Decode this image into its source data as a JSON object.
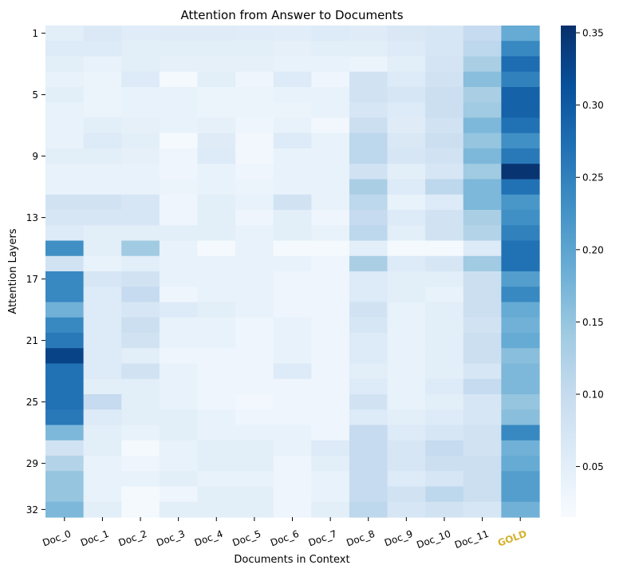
{
  "chart_data": {
    "type": "heatmap",
    "title": "Attention from Answer to Documents",
    "xlabel": "Documents in Context",
    "ylabel": "Attention Layers",
    "columns": [
      "Doc_0",
      "Doc_1",
      "Doc_2",
      "Doc_3",
      "Doc_4",
      "Doc_5",
      "Doc_6",
      "Doc_7",
      "Doc_8",
      "Doc_9",
      "Doc_10",
      "Doc_11",
      "GOLD"
    ],
    "highlight_column": "GOLD",
    "highlight_color": "#d4b22f",
    "y_tick_labels": [
      "1",
      "5",
      "9",
      "13",
      "17",
      "21",
      "25",
      "29",
      "32"
    ],
    "y_tick_rows": [
      1,
      5,
      9,
      13,
      17,
      21,
      25,
      29,
      32
    ],
    "rows": 32,
    "colorbar": {
      "min": 0.015,
      "max": 0.355,
      "ticks": [
        0.05,
        0.1,
        0.15,
        0.2,
        0.25,
        0.3,
        0.35
      ],
      "tick_labels": [
        "0.05",
        "0.10",
        "0.15",
        "0.20",
        "0.25",
        "0.30",
        "0.35"
      ]
    },
    "colormap": "Blues",
    "values": [
      [
        0.05,
        0.062,
        0.054,
        0.055,
        0.055,
        0.054,
        0.053,
        0.06,
        0.056,
        0.065,
        0.07,
        0.1,
        0.19
      ],
      [
        0.06,
        0.06,
        0.05,
        0.05,
        0.05,
        0.05,
        0.045,
        0.05,
        0.05,
        0.06,
        0.07,
        0.11,
        0.24
      ],
      [
        0.05,
        0.04,
        0.05,
        0.045,
        0.045,
        0.045,
        0.04,
        0.04,
        0.035,
        0.05,
        0.075,
        0.13,
        0.275
      ],
      [
        0.04,
        0.035,
        0.06,
        0.02,
        0.05,
        0.03,
        0.06,
        0.03,
        0.08,
        0.06,
        0.08,
        0.16,
        0.25
      ],
      [
        0.05,
        0.035,
        0.04,
        0.04,
        0.035,
        0.035,
        0.04,
        0.04,
        0.08,
        0.07,
        0.09,
        0.13,
        0.29
      ],
      [
        0.04,
        0.035,
        0.04,
        0.04,
        0.035,
        0.035,
        0.035,
        0.04,
        0.07,
        0.06,
        0.09,
        0.14,
        0.29
      ],
      [
        0.04,
        0.05,
        0.045,
        0.04,
        0.045,
        0.03,
        0.04,
        0.025,
        0.09,
        0.055,
        0.08,
        0.17,
        0.27
      ],
      [
        0.04,
        0.06,
        0.05,
        0.02,
        0.055,
        0.025,
        0.06,
        0.04,
        0.11,
        0.065,
        0.09,
        0.15,
        0.23
      ],
      [
        0.05,
        0.05,
        0.045,
        0.03,
        0.06,
        0.025,
        0.04,
        0.04,
        0.11,
        0.07,
        0.08,
        0.17,
        0.26
      ],
      [
        0.04,
        0.04,
        0.04,
        0.03,
        0.04,
        0.03,
        0.04,
        0.04,
        0.08,
        0.05,
        0.07,
        0.14,
        0.35
      ],
      [
        0.04,
        0.04,
        0.04,
        0.035,
        0.04,
        0.035,
        0.04,
        0.04,
        0.13,
        0.06,
        0.11,
        0.17,
        0.27
      ],
      [
        0.08,
        0.08,
        0.07,
        0.03,
        0.05,
        0.04,
        0.08,
        0.04,
        0.11,
        0.04,
        0.06,
        0.17,
        0.22
      ],
      [
        0.07,
        0.07,
        0.07,
        0.03,
        0.05,
        0.03,
        0.05,
        0.03,
        0.1,
        0.06,
        0.08,
        0.13,
        0.23
      ],
      [
        0.06,
        0.05,
        0.05,
        0.05,
        0.05,
        0.04,
        0.05,
        0.04,
        0.11,
        0.05,
        0.08,
        0.12,
        0.25
      ],
      [
        0.23,
        0.05,
        0.14,
        0.04,
        0.02,
        0.04,
        0.02,
        0.02,
        0.05,
        0.02,
        0.02,
        0.06,
        0.27
      ],
      [
        0.08,
        0.04,
        0.05,
        0.04,
        0.04,
        0.04,
        0.04,
        0.03,
        0.13,
        0.06,
        0.07,
        0.14,
        0.27
      ],
      [
        0.24,
        0.07,
        0.08,
        0.04,
        0.04,
        0.04,
        0.03,
        0.03,
        0.06,
        0.05,
        0.05,
        0.09,
        0.21
      ],
      [
        0.24,
        0.06,
        0.1,
        0.03,
        0.04,
        0.04,
        0.03,
        0.03,
        0.06,
        0.05,
        0.04,
        0.09,
        0.24
      ],
      [
        0.18,
        0.06,
        0.07,
        0.06,
        0.05,
        0.04,
        0.03,
        0.03,
        0.08,
        0.04,
        0.05,
        0.09,
        0.19
      ],
      [
        0.24,
        0.06,
        0.09,
        0.04,
        0.04,
        0.03,
        0.04,
        0.03,
        0.07,
        0.04,
        0.05,
        0.08,
        0.18
      ],
      [
        0.26,
        0.06,
        0.08,
        0.04,
        0.04,
        0.03,
        0.04,
        0.03,
        0.06,
        0.04,
        0.05,
        0.09,
        0.19
      ],
      [
        0.33,
        0.06,
        0.05,
        0.03,
        0.03,
        0.03,
        0.04,
        0.03,
        0.06,
        0.04,
        0.05,
        0.09,
        0.16
      ],
      [
        0.27,
        0.06,
        0.08,
        0.04,
        0.03,
        0.03,
        0.06,
        0.03,
        0.05,
        0.04,
        0.05,
        0.07,
        0.17
      ],
      [
        0.27,
        0.05,
        0.05,
        0.04,
        0.03,
        0.03,
        0.03,
        0.03,
        0.06,
        0.04,
        0.06,
        0.1,
        0.17
      ],
      [
        0.27,
        0.1,
        0.05,
        0.04,
        0.03,
        0.025,
        0.03,
        0.03,
        0.08,
        0.04,
        0.05,
        0.07,
        0.15
      ],
      [
        0.26,
        0.06,
        0.05,
        0.05,
        0.04,
        0.03,
        0.03,
        0.03,
        0.06,
        0.05,
        0.06,
        0.07,
        0.16
      ],
      [
        0.17,
        0.05,
        0.04,
        0.05,
        0.04,
        0.04,
        0.04,
        0.03,
        0.1,
        0.06,
        0.07,
        0.08,
        0.24
      ],
      [
        0.08,
        0.05,
        0.02,
        0.04,
        0.05,
        0.05,
        0.04,
        0.06,
        0.1,
        0.07,
        0.1,
        0.08,
        0.18
      ],
      [
        0.12,
        0.04,
        0.03,
        0.04,
        0.05,
        0.05,
        0.03,
        0.05,
        0.1,
        0.07,
        0.09,
        0.09,
        0.19
      ],
      [
        0.15,
        0.04,
        0.04,
        0.05,
        0.04,
        0.04,
        0.03,
        0.04,
        0.1,
        0.06,
        0.07,
        0.09,
        0.21
      ],
      [
        0.15,
        0.04,
        0.02,
        0.03,
        0.05,
        0.05,
        0.03,
        0.04,
        0.1,
        0.08,
        0.11,
        0.09,
        0.21
      ],
      [
        0.17,
        0.05,
        0.02,
        0.05,
        0.05,
        0.05,
        0.03,
        0.05,
        0.11,
        0.07,
        0.08,
        0.07,
        0.18
      ]
    ]
  }
}
